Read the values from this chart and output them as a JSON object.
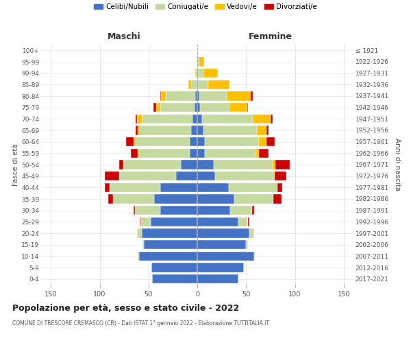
{
  "age_groups": [
    "0-4",
    "5-9",
    "10-14",
    "15-19",
    "20-24",
    "25-29",
    "30-34",
    "35-39",
    "40-44",
    "45-49",
    "50-54",
    "55-59",
    "60-64",
    "65-69",
    "70-74",
    "75-79",
    "80-84",
    "85-89",
    "90-94",
    "95-99",
    "100+"
  ],
  "birth_years": [
    "2017-2021",
    "2012-2016",
    "2007-2011",
    "2002-2006",
    "1997-2001",
    "1992-1996",
    "1987-1991",
    "1982-1986",
    "1977-1981",
    "1972-1976",
    "1967-1971",
    "1962-1966",
    "1957-1961",
    "1952-1956",
    "1947-1951",
    "1942-1946",
    "1937-1941",
    "1932-1936",
    "1927-1931",
    "1922-1926",
    "≤ 1921"
  ],
  "males": {
    "celibi": [
      46,
      47,
      60,
      55,
      57,
      48,
      38,
      44,
      38,
      22,
      17,
      8,
      8,
      6,
      5,
      3,
      2,
      1,
      0,
      0,
      0
    ],
    "coniugati": [
      0,
      0,
      1,
      1,
      5,
      10,
      26,
      42,
      52,
      58,
      58,
      52,
      55,
      53,
      52,
      35,
      30,
      5,
      2,
      1,
      0
    ],
    "vedovi": [
      0,
      0,
      0,
      0,
      0,
      0,
      0,
      0,
      0,
      0,
      1,
      1,
      2,
      2,
      5,
      4,
      5,
      3,
      1,
      0,
      0
    ],
    "divorziati": [
      0,
      0,
      0,
      0,
      0,
      1,
      1,
      5,
      5,
      15,
      4,
      7,
      8,
      2,
      1,
      3,
      1,
      0,
      0,
      0,
      0
    ]
  },
  "females": {
    "nubili": [
      42,
      48,
      58,
      50,
      53,
      42,
      34,
      38,
      32,
      18,
      17,
      8,
      8,
      6,
      5,
      3,
      2,
      1,
      1,
      0,
      0
    ],
    "coniugate": [
      0,
      0,
      1,
      2,
      5,
      10,
      22,
      40,
      50,
      60,
      60,
      52,
      55,
      55,
      52,
      30,
      28,
      10,
      5,
      2,
      0
    ],
    "vedove": [
      0,
      0,
      0,
      0,
      0,
      0,
      0,
      0,
      0,
      1,
      3,
      3,
      8,
      10,
      18,
      18,
      25,
      22,
      15,
      5,
      0
    ],
    "divorziate": [
      0,
      0,
      0,
      0,
      0,
      1,
      2,
      8,
      5,
      12,
      15,
      10,
      8,
      2,
      2,
      1,
      2,
      0,
      0,
      0,
      0
    ]
  },
  "colors": {
    "celibi": "#4472c4",
    "coniugati": "#c5d9a0",
    "vedovi": "#ffc000",
    "divorziati": "#cc0000"
  },
  "title": "Popolazione per età, sesso e stato civile - 2022",
  "subtitle": "COMUNE DI TRESCORE CREMASCO (CR) - Dati ISTAT 1° gennaio 2022 - Elaborazione TUTTITALIA.IT",
  "xlabel_left": "Maschi",
  "xlabel_right": "Femmine",
  "ylabel_left": "Fasce di età",
  "ylabel_right": "Anni di nascita",
  "xlim": 160,
  "legend_labels": [
    "Celibi/Nubili",
    "Coniugati/e",
    "Vedovi/e",
    "Divorziati/e"
  ],
  "bg_color": "#ffffff",
  "grid_color": "#cccccc"
}
